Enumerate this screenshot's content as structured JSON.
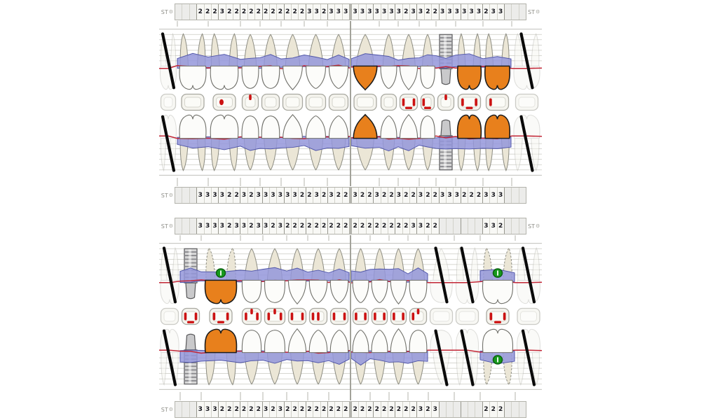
{
  "labels": {
    "st": "ST",
    "gear": "⚙"
  },
  "colors": {
    "crown": "#e8801c",
    "band_fill": "rgba(148,150,219,0.85)",
    "band_edge": "#5056a8",
    "gum_line": "#c22636",
    "marker_green": "#17991c",
    "marker_edge": "#0b5e10",
    "mark_red": "#cc1212",
    "missing_line": "#0a0a0a",
    "grid": "#c9c9c2",
    "grid_strong": "#aaaaa2",
    "tick": "#b5b5ae",
    "tooth_fill": "#fcfcfa",
    "tooth_edge": "#70706a",
    "root_fill": "#ebe6d6",
    "root_edge": "#8c8c82"
  },
  "charts": [
    {
      "name": "buccal-view",
      "strip_top": {
        "st_right": true,
        "left": [
          "",
          "",
          "",
          "2",
          "2",
          "2",
          "3",
          "2",
          "2",
          "2",
          "2",
          "2",
          "2",
          "2",
          "2",
          "2",
          "2",
          "2",
          "3",
          "3",
          "2",
          "3",
          "3",
          "3"
        ],
        "right": [
          "3",
          "3",
          "3",
          "3",
          "3",
          "3",
          "3",
          "2",
          "3",
          "3",
          "2",
          "2",
          "3",
          "3",
          "3",
          "3",
          "3",
          "3",
          "2",
          "3",
          "3",
          "",
          "",
          ""
        ]
      },
      "strip_bottom": {
        "st_right": false,
        "left": [
          "",
          "",
          "",
          "3",
          "3",
          "3",
          "3",
          "2",
          "2",
          "3",
          "2",
          "3",
          "3",
          "3",
          "3",
          "3",
          "3",
          "2",
          "2",
          "3",
          "2",
          "3",
          "2",
          "2"
        ],
        "right": [
          "3",
          "2",
          "2",
          "3",
          "2",
          "2",
          "3",
          "2",
          "2",
          "3",
          "2",
          "2",
          "3",
          "3",
          "3",
          "2",
          "2",
          "2",
          "3",
          "3",
          "3",
          "",
          "",
          ""
        ]
      },
      "occlusal": {
        "left": [
          [],
          [],
          [
            "cl"
          ],
          [
            "t"
          ],
          [],
          [],
          [],
          []
        ],
        "right": [
          [],
          [],
          [
            "l",
            "r",
            "b"
          ],
          [
            "l",
            "b"
          ],
          [
            "t"
          ],
          [
            "l",
            "b",
            "r"
          ],
          [
            "l"
          ],
          []
        ]
      },
      "rows": {
        "upper": {
          "left": {
            "widths": [
              26,
              44,
              46,
              28,
              30,
              33,
              33,
              32
            ],
            "teeth": [
              {
                "t": "molar",
                "s": "missing"
              },
              {
                "t": "molar",
                "s": "normal"
              },
              {
                "t": "molar",
                "s": "normal"
              },
              {
                "t": "premolar",
                "s": "normal"
              },
              {
                "t": "premolar",
                "s": "normal"
              },
              {
                "t": "canine",
                "s": "normal"
              },
              {
                "t": "incisor",
                "s": "normal"
              },
              {
                "t": "incisor",
                "s": "normal"
              }
            ]
          },
          "right": {
            "widths": [
              40,
              27,
              30,
              24,
              28,
              39,
              41,
              43
            ],
            "teeth": [
              {
                "t": "canine",
                "s": "crown"
              },
              {
                "t": "incisor",
                "s": "normal"
              },
              {
                "t": "canine",
                "s": "normal"
              },
              {
                "t": "premolar",
                "s": "normal"
              },
              {
                "t": "premolar",
                "s": "implant"
              },
              {
                "t": "molar",
                "s": "crown"
              },
              {
                "t": "molar",
                "s": "crown"
              },
              {
                "t": "molar",
                "s": "missing"
              }
            ]
          }
        },
        "lower": {
          "left": {
            "widths": [
              26,
              44,
              46,
              28,
              30,
              33,
              33,
              32
            ],
            "teeth": [
              {
                "t": "molar",
                "s": "missing"
              },
              {
                "t": "molar",
                "s": "normal"
              },
              {
                "t": "molar",
                "s": "normal"
              },
              {
                "t": "premolar",
                "s": "normal"
              },
              {
                "t": "premolar",
                "s": "normal"
              },
              {
                "t": "canine",
                "s": "normal"
              },
              {
                "t": "incisor",
                "s": "normal"
              },
              {
                "t": "incisor",
                "s": "normal"
              }
            ]
          },
          "right": {
            "widths": [
              40,
              27,
              30,
              24,
              28,
              39,
              41,
              43
            ],
            "teeth": [
              {
                "t": "canine",
                "s": "crown"
              },
              {
                "t": "incisor",
                "s": "normal"
              },
              {
                "t": "canine",
                "s": "normal"
              },
              {
                "t": "premolar",
                "s": "normal"
              },
              {
                "t": "premolar",
                "s": "implant"
              },
              {
                "t": "molar",
                "s": "crown"
              },
              {
                "t": "molar",
                "s": "crown"
              },
              {
                "t": "molar",
                "s": "missing"
              }
            ]
          }
        }
      }
    },
    {
      "name": "lingual-view",
      "strip_top": {
        "st_right": true,
        "left": [
          "",
          "",
          "",
          "3",
          "3",
          "3",
          "3",
          "2",
          "3",
          "3",
          "2",
          "3",
          "3",
          "2",
          "3",
          "2",
          "2",
          "2",
          "2",
          "2",
          "2",
          "2",
          "2",
          "2"
        ],
        "right": [
          "2",
          "2",
          "2",
          "2",
          "2",
          "2",
          "2",
          "2",
          "3",
          "3",
          "2",
          "2",
          "",
          "",
          "",
          "",
          "",
          "",
          "3",
          "3",
          "2",
          "",
          "",
          ""
        ]
      },
      "strip_bottom": {
        "st_right": false,
        "left": [
          "",
          "",
          "",
          "3",
          "3",
          "3",
          "2",
          "2",
          "2",
          "2",
          "2",
          "2",
          "3",
          "2",
          "3",
          "2",
          "2",
          "2",
          "2",
          "2",
          "2",
          "2",
          "2",
          "2"
        ],
        "right": [
          "2",
          "2",
          "2",
          "2",
          "2",
          "2",
          "2",
          "2",
          "2",
          "3",
          "2",
          "3",
          "",
          "",
          "",
          "",
          "",
          "",
          "2",
          "2",
          "2",
          "",
          "",
          ""
        ]
      },
      "occlusal": {
        "left": [
          [],
          [
            "l",
            "b",
            "r"
          ],
          [
            "l",
            "b",
            "r"
          ],
          [
            "t",
            "l",
            "r"
          ],
          [
            "t",
            "l",
            "r"
          ],
          [
            "l",
            "r"
          ],
          [
            "c",
            "l"
          ],
          [
            "l",
            "r"
          ]
        ],
        "right": [
          [
            "l",
            "r"
          ],
          [
            "l",
            "r"
          ],
          [
            "l",
            "r"
          ],
          [
            "t",
            "l"
          ],
          [],
          [],
          [
            "l",
            "b",
            "r"
          ],
          []
        ]
      },
      "rows": {
        "upper": {
          "left": {
            "widths": [
              30,
              30,
              56,
              32,
              34,
              30,
              30,
              30
            ],
            "teeth": [
              {
                "t": "molar",
                "s": "missing"
              },
              {
                "t": "premolar",
                "s": "implant"
              },
              {
                "t": "molar",
                "s": "crown",
                "g": true,
                "dr": true
              },
              {
                "t": "premolar",
                "s": "normal"
              },
              {
                "t": "premolar",
                "s": "normal"
              },
              {
                "t": "canine",
                "s": "normal"
              },
              {
                "t": "incisor",
                "s": "normal"
              },
              {
                "t": "incisor",
                "s": "normal"
              }
            ]
          },
          "right": {
            "widths": [
              27,
              27,
              27,
              29,
              37,
              37,
              50,
              38
            ],
            "teeth": [
              {
                "t": "incisor",
                "s": "normal"
              },
              {
                "t": "incisor",
                "s": "normal"
              },
              {
                "t": "canine",
                "s": "normal"
              },
              {
                "t": "premolar",
                "s": "normal"
              },
              {
                "t": "premolar",
                "s": "missing"
              },
              {
                "t": "molar",
                "s": "missing"
              },
              {
                "t": "molar",
                "s": "normal",
                "g": true,
                "dr": true
              },
              {
                "t": "molar",
                "s": "missing"
              }
            ]
          }
        },
        "lower": {
          "left": {
            "widths": [
              30,
              30,
              56,
              32,
              34,
              30,
              30,
              30
            ],
            "teeth": [
              {
                "t": "molar",
                "s": "missing"
              },
              {
                "t": "premolar",
                "s": "implant"
              },
              {
                "t": "molar",
                "s": "crown"
              },
              {
                "t": "premolar",
                "s": "normal"
              },
              {
                "t": "premolar",
                "s": "normal"
              },
              {
                "t": "canine",
                "s": "normal"
              },
              {
                "t": "incisor",
                "s": "normal"
              },
              {
                "t": "incisor",
                "s": "normal"
              }
            ]
          },
          "right": {
            "widths": [
              27,
              27,
              27,
              29,
              37,
              37,
              50,
              38
            ],
            "teeth": [
              {
                "t": "incisor",
                "s": "normal"
              },
              {
                "t": "incisor",
                "s": "normal"
              },
              {
                "t": "canine",
                "s": "normal"
              },
              {
                "t": "premolar",
                "s": "normal"
              },
              {
                "t": "premolar",
                "s": "missing"
              },
              {
                "t": "molar",
                "s": "missing"
              },
              {
                "t": "molar",
                "s": "normal",
                "g": true,
                "dr": true
              },
              {
                "t": "molar",
                "s": "missing"
              }
            ]
          }
        }
      }
    }
  ]
}
